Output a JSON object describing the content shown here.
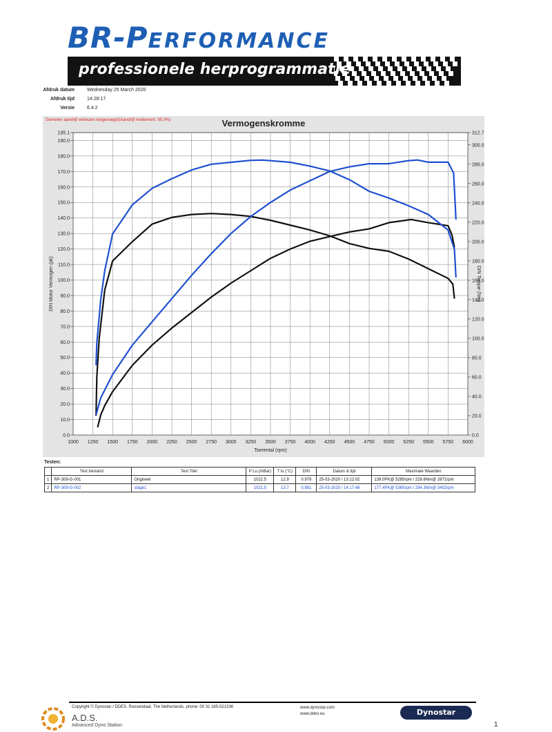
{
  "logo": {
    "main": "BR-P",
    "rest": "ERFORMANCE",
    "tagline": "professionele herprogrammatie"
  },
  "meta": [
    {
      "label": "Afdruk datum",
      "value": "Wednesday 25 March 2020"
    },
    {
      "label": "Afdruk tijd",
      "value": "14:28:17"
    },
    {
      "label": "Versie",
      "value": "6.4.2"
    }
  ],
  "chart_data": {
    "type": "line",
    "title": "Vermogenskromme",
    "note": "Gemeten aandrijf verliezen toegevoegd/(Aandrijf rendement: 95.0%)",
    "xlabel": "Toerental (rpm)",
    "ylabel": "DIN Motor Vermogen (pk)",
    "y2label": "DIN Torque (Nm)",
    "xlim": [
      1000,
      6000
    ],
    "ylim": [
      0,
      195.1
    ],
    "y2lim": [
      0,
      312.7
    ],
    "grid": true,
    "x_ticks": [
      1000,
      1250,
      1500,
      1750,
      2000,
      2250,
      2500,
      2750,
      3000,
      3250,
      3500,
      3750,
      4000,
      4250,
      4500,
      4750,
      5000,
      5250,
      5500,
      5750,
      6000
    ],
    "y_ticks": [
      "0.0",
      "10.0",
      "20.0",
      "30.0",
      "40.0",
      "50.0",
      "60.0",
      "70.0",
      "80.0",
      "90.0",
      "100.0",
      "110.0",
      "120.0",
      "130.0",
      "140.0",
      "150.0",
      "160.0",
      "170.0",
      "180.0",
      "190.0",
      "195.1"
    ],
    "y2_ticks": [
      "0.0",
      "20.0",
      "40.0",
      "60.0",
      "80.0",
      "100.0",
      "120.0",
      "140.0",
      "160.0",
      "180.0",
      "200.0",
      "220.0",
      "240.0",
      "260.0",
      "280.0",
      "300.0",
      "312.7"
    ],
    "colors": {
      "origineel": "#111111",
      "stage1": "#1e4fd0",
      "grid": "#777777",
      "panel": "#e4e4e4"
    },
    "series": [
      {
        "name": "Origineel",
        "kind": "power",
        "axis": "left",
        "color": "#111111",
        "x": [
          1310,
          1350,
          1400,
          1500,
          1750,
          2000,
          2250,
          2500,
          2750,
          3000,
          3250,
          3500,
          3750,
          4000,
          4250,
          4500,
          4750,
          5000,
          5285,
          5500,
          5750,
          5800,
          5830
        ],
        "y": [
          5,
          13,
          19,
          28,
          45,
          58,
          69,
          79,
          89,
          98,
          106,
          114,
          120,
          125,
          128,
          131,
          133,
          137,
          139,
          137,
          135,
          129,
          121
        ]
      },
      {
        "name": "Origineel",
        "kind": "torque",
        "axis": "right",
        "color": "#111111",
        "x": [
          1290,
          1300,
          1330,
          1400,
          1500,
          1750,
          2000,
          2250,
          2500,
          2750,
          3000,
          3250,
          3500,
          3750,
          4000,
          4250,
          4500,
          4750,
          5000,
          5250,
          5500,
          5750,
          5810,
          5830
        ],
        "y": [
          20,
          60,
          100,
          150,
          180,
          200,
          218,
          225,
          228,
          229,
          228,
          226,
          222,
          217,
          212,
          206,
          198,
          193,
          190,
          182,
          172,
          162,
          156,
          141
        ]
      },
      {
        "name": "stage1",
        "kind": "power",
        "axis": "left",
        "color": "#1e4fd0",
        "x": [
          1290,
          1350,
          1500,
          1750,
          2000,
          2250,
          2500,
          2750,
          3000,
          3250,
          3500,
          3750,
          4000,
          4250,
          4500,
          4750,
          5000,
          5250,
          5365,
          5500,
          5750,
          5820,
          5850
        ],
        "y": [
          13,
          24,
          39,
          58,
          73,
          88,
          103,
          117,
          130,
          141,
          150,
          158,
          164,
          170,
          173,
          175,
          175,
          177,
          177.4,
          176,
          176,
          169,
          139
        ]
      },
      {
        "name": "stage1",
        "kind": "torque",
        "axis": "right",
        "color": "#1e4fd0",
        "x": [
          1290,
          1300,
          1350,
          1400,
          1500,
          1750,
          2000,
          2250,
          2500,
          2750,
          3000,
          3250,
          3402,
          3750,
          4000,
          4250,
          4500,
          4750,
          5000,
          5250,
          5500,
          5750,
          5830,
          5850
        ],
        "y": [
          72,
          95,
          140,
          170,
          208,
          238,
          255,
          265,
          274,
          280,
          282,
          284,
          284.3,
          282,
          278,
          273,
          264,
          252,
          245,
          237,
          228,
          212,
          192,
          163
        ]
      }
    ]
  },
  "tests": {
    "label": "Testen:",
    "headers": [
      "",
      "Test bestand",
      "Test Titel",
      "P Lu.(mBar)",
      "T lu (°C)",
      "DIN",
      "Datum & tijd",
      "Maximale Waarden"
    ],
    "rows": [
      {
        "cells": [
          "1",
          "RP-309-G-001",
          "Origineel",
          "1022.5",
          "12.9",
          "0.979",
          "25-03-2020 / 13:12:02",
          "139.0PK@ 5285rpm / 228.6Nm@ 2871rpm"
        ],
        "color": "#111111"
      },
      {
        "cells": [
          "2",
          "RP-309-G-002",
          "stage1",
          "1021.5",
          "13.7",
          "0.981",
          "25-03-2020 / 14:17:48",
          "177.4PK@ 5365rpm / 284.3Nm@ 3402rpm"
        ],
        "color": "#1e4fd0"
      }
    ]
  },
  "footer": {
    "copyright": "Copyright © Dynostar / DDES. Roosendaal, The Netherlands. phone: 00 31 165-521336",
    "web1": "www.dynostar.com",
    "web2": "www.ddes.eu",
    "ads_name": "A.D.S.",
    "ads_sub": "Advanced Dyno Station",
    "dynostar": "Dynostar",
    "page": "1"
  }
}
